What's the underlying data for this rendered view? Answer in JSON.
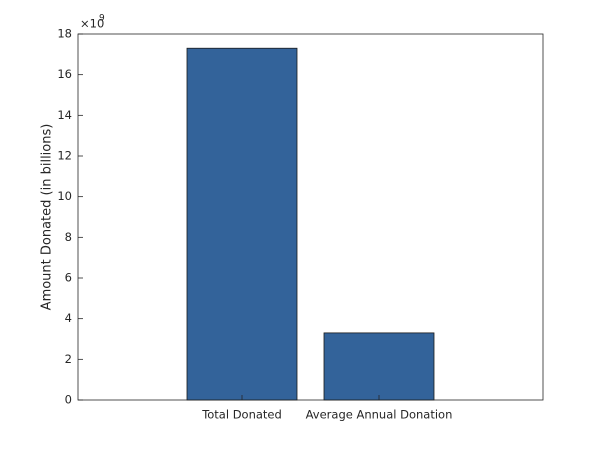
{
  "chart_data": {
    "type": "bar",
    "ylabel": "Amount Donated (in billions)",
    "exponent_label": {
      "base": "×10",
      "power": "9"
    },
    "categories": [
      "Total Donated",
      "Average Annual Donation"
    ],
    "values": [
      17.3,
      3.3
    ],
    "color": "#33639a",
    "ylim": [
      0,
      18
    ],
    "yticks": [
      0,
      2,
      4,
      6,
      8,
      10,
      12,
      14,
      16,
      18
    ]
  }
}
